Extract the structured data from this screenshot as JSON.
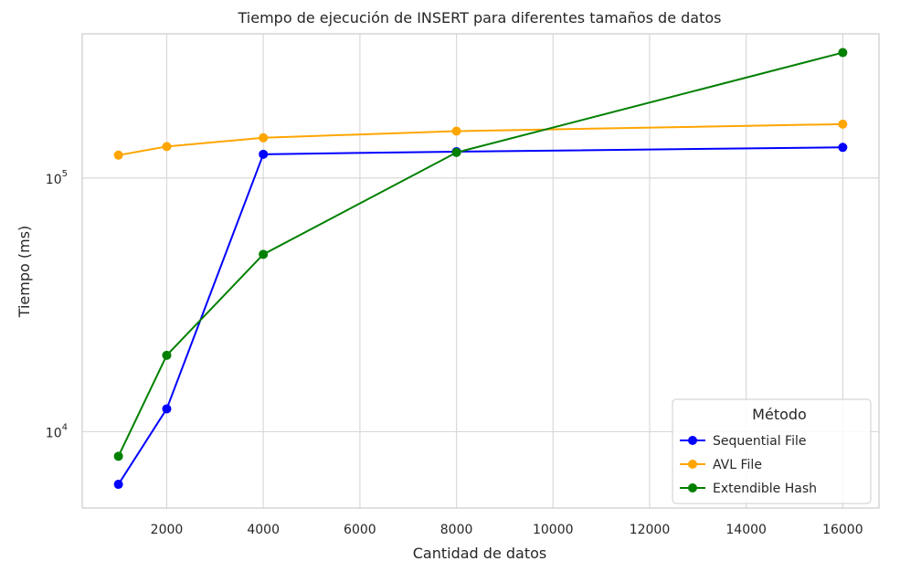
{
  "chart_data": {
    "type": "line",
    "title": "Tiempo de ejecución de INSERT para diferentes tamaños de datos",
    "xlabel": "Cantidad de datos",
    "ylabel": "Tiempo (ms)",
    "y_scale": "log",
    "xlim": [
      250,
      16750
    ],
    "ylim": [
      5000,
      370000
    ],
    "grid": true,
    "x_ticks": [
      2000,
      4000,
      6000,
      8000,
      10000,
      12000,
      14000,
      16000
    ],
    "y_ticks": [
      {
        "value": 10000,
        "base": "10",
        "exp": "4"
      },
      {
        "value": 100000,
        "base": "10",
        "exp": "5"
      }
    ],
    "legend": {
      "title": "Método",
      "position": "bottom-right"
    },
    "x": [
      1000,
      2000,
      4000,
      8000,
      16000
    ],
    "series": [
      {
        "name": "Sequential File",
        "color": "#0000ff",
        "values": [
          6200,
          12300,
          124000,
          127000,
          132000
        ]
      },
      {
        "name": "AVL File",
        "color": "#ffa500",
        "values": [
          123000,
          133000,
          144000,
          153000,
          163000
        ]
      },
      {
        "name": "Extendible Hash",
        "color": "#008000",
        "values": [
          8000,
          20000,
          50000,
          126000,
          312000
        ]
      }
    ]
  }
}
